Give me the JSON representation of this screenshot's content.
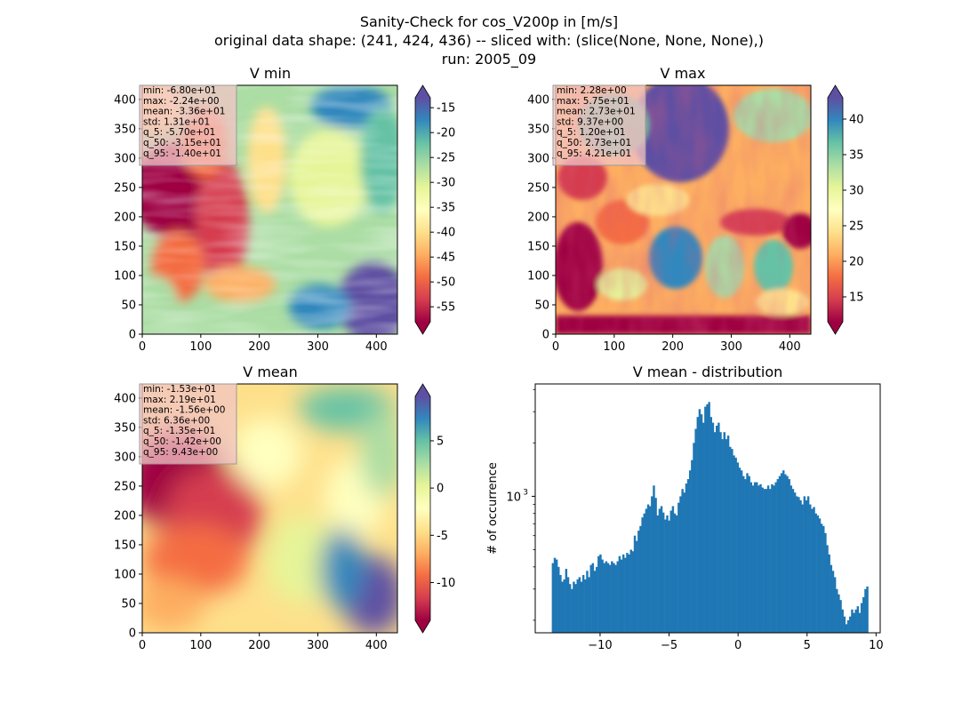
{
  "figure": {
    "title_line1": "Sanity-Check for cos_V200p in [m/s]",
    "title_line2": "original data shape: (241, 424, 436) -- sliced with: (slice(None, None, None),)",
    "title_line3": "run: 2005_09"
  },
  "colormap": {
    "name": "Spectral",
    "stops": [
      "#9e0142",
      "#d53e4f",
      "#f46d43",
      "#fdae61",
      "#fee08b",
      "#ffffbf",
      "#e6f598",
      "#abdda4",
      "#66c2a5",
      "#3288bd",
      "#5e4fa2"
    ]
  },
  "panels": [
    {
      "id": "vmin",
      "title": "V min",
      "x_ticks": [
        "0",
        "100",
        "200",
        "300",
        "400"
      ],
      "y_ticks": [
        "0",
        "50",
        "100",
        "150",
        "200",
        "250",
        "300",
        "350",
        "400"
      ],
      "x_range": [
        0,
        436
      ],
      "y_range": [
        0,
        424
      ],
      "stats": [
        "min: -6.80e+01",
        "max: -2.24e+00",
        "mean: -3.36e+01",
        "std: 1.31e+01",
        "q_5: -5.70e+01",
        "q_50: -3.15e+01",
        "q_95: -1.40e+01"
      ],
      "colorbar": {
        "range": [
          -58,
          -13
        ],
        "ticks": [
          "-15",
          "-20",
          "-25",
          "-30",
          "-35",
          "-40",
          "-45",
          "-50",
          "-55"
        ],
        "tick_values": [
          -15,
          -20,
          -25,
          -30,
          -35,
          -40,
          -45,
          -50,
          -55
        ]
      }
    },
    {
      "id": "vmax",
      "title": "V max",
      "x_ticks": [
        "0",
        "100",
        "200",
        "300",
        "400"
      ],
      "y_ticks": [
        "0",
        "50",
        "100",
        "150",
        "200",
        "250",
        "300",
        "350",
        "400"
      ],
      "x_range": [
        0,
        436
      ],
      "y_range": [
        0,
        424
      ],
      "stats": [
        "min: 2.28e+00",
        "max: 5.75e+01",
        "mean: 2.73e+01",
        "std: 9.37e+00",
        "q_5: 1.20e+01",
        "q_50: 2.73e+01",
        "q_95: 4.21e+01"
      ],
      "colorbar": {
        "range": [
          11.5,
          43
        ],
        "ticks": [
          "15",
          "20",
          "25",
          "30",
          "35",
          "40"
        ],
        "tick_values": [
          15,
          20,
          25,
          30,
          35,
          40
        ]
      }
    },
    {
      "id": "vmean",
      "title": "V mean",
      "x_ticks": [
        "0",
        "100",
        "200",
        "300",
        "400"
      ],
      "y_ticks": [
        "0",
        "50",
        "100",
        "150",
        "200",
        "250",
        "300",
        "350",
        "400"
      ],
      "x_range": [
        0,
        436
      ],
      "y_range": [
        0,
        424
      ],
      "stats": [
        "min: -1.53e+01",
        "max: 2.19e+01",
        "mean: -1.56e+00",
        "std: 6.36e+00",
        "q_5: -1.35e+01",
        "q_50: -1.42e+00",
        "q_95: 9.43e+00"
      ],
      "colorbar": {
        "range": [
          -14,
          9.7
        ],
        "ticks": [
          "5",
          "0",
          "-5",
          "-10"
        ],
        "tick_values": [
          5,
          0,
          -5,
          -10
        ]
      }
    }
  ],
  "chart_data": {
    "type": "bar",
    "title": "V mean - distribution",
    "xlabel": "",
    "ylabel": "# of occurrence",
    "y_scale": "log",
    "xlim": [
      -14.7,
      10.3
    ],
    "ylim": [
      170,
      4300
    ],
    "x_ticks": [
      -10,
      -5,
      0,
      5,
      10
    ],
    "x_tick_labels": [
      "−10",
      "−5",
      "0",
      "5",
      "10"
    ],
    "y_tick_label": "10",
    "y_tick_exponent": "3",
    "y_tick_value": 1000,
    "bar_color": "#1f77b4",
    "x_min": -13.5,
    "x_max": 9.43,
    "values": [
      420,
      450,
      440,
      400,
      360,
      330,
      340,
      390,
      350,
      320,
      300,
      330,
      320,
      340,
      350,
      330,
      360,
      340,
      380,
      350,
      410,
      420,
      380,
      400,
      460,
      470,
      440,
      420,
      430,
      420,
      410,
      430,
      420,
      410,
      430,
      460,
      440,
      470,
      450,
      480,
      470,
      500,
      490,
      600,
      560,
      640,
      680,
      760,
      800,
      850,
      900,
      880,
      1000,
      1150,
      980,
      780,
      850,
      880,
      810,
      740,
      780,
      730,
      830,
      880,
      800,
      780,
      920,
      1000,
      1100,
      1050,
      1180,
      1250,
      1400,
      1600,
      2000,
      2400,
      2800,
      3100,
      2900,
      2600,
      3200,
      3300,
      3400,
      2800,
      2600,
      2300,
      2500,
      2600,
      2300,
      2100,
      2300,
      2100,
      2200,
      1900,
      1850,
      1700,
      1650,
      1550,
      1450,
      1400,
      1300,
      1250,
      1350,
      1300,
      1200,
      1150,
      1200,
      1200,
      1150,
      1170,
      1120,
      1100,
      1100,
      1150,
      1100,
      1170,
      1150,
      1200,
      1250,
      1300,
      1350,
      1400,
      1330,
      1300,
      1250,
      1150,
      1100,
      1050,
      1000,
      990,
      950,
      900,
      1000,
      950,
      1000,
      900,
      850,
      870,
      800,
      780,
      750,
      700,
      680,
      620,
      530,
      470,
      410,
      380,
      350,
      300,
      280,
      260,
      230,
      210,
      190,
      200,
      210,
      230,
      220,
      230,
      240,
      220,
      250,
      270,
      300,
      310
    ]
  }
}
